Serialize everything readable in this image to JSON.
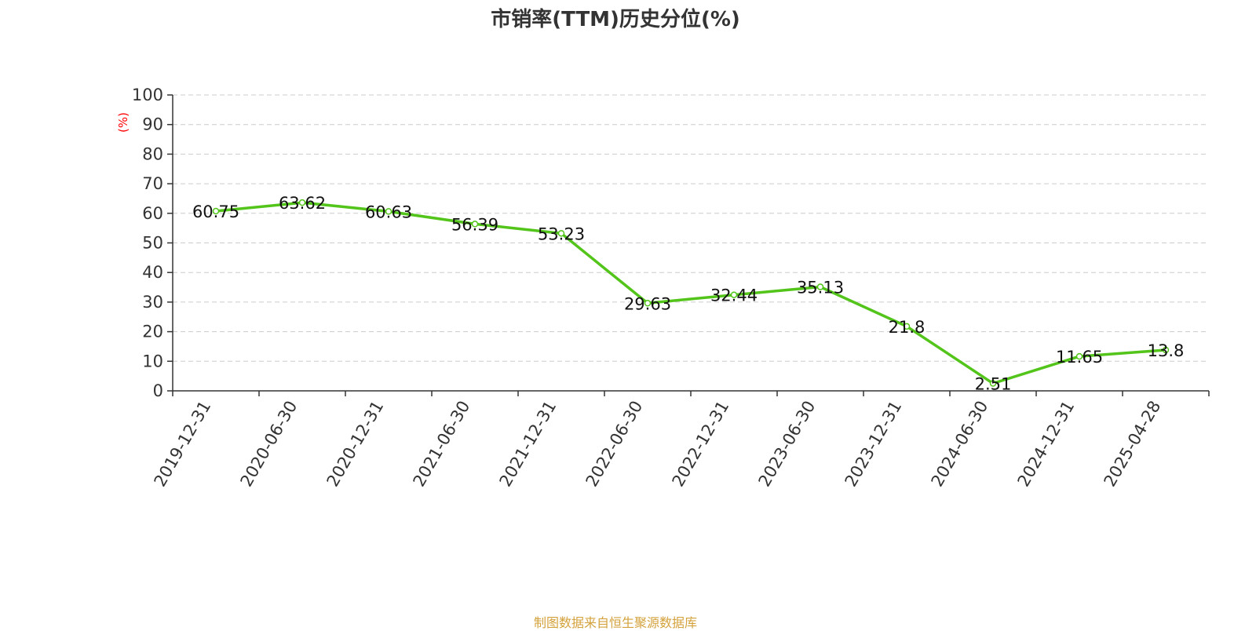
{
  "chart_data": {
    "type": "line",
    "title": "市销率(TTM)历史分位(%)",
    "ylabel": "(%)",
    "xlabel": "",
    "ylim": [
      0,
      100
    ],
    "yticks": [
      0,
      10,
      20,
      30,
      40,
      50,
      60,
      70,
      80,
      90,
      100
    ],
    "categories": [
      "2019-12-31",
      "2020-06-30",
      "2020-12-31",
      "2021-06-30",
      "2021-12-31",
      "2022-06-30",
      "2022-12-31",
      "2023-06-30",
      "2023-12-31",
      "2024-06-30",
      "2024-12-31",
      "2025-04-28"
    ],
    "series": [
      {
        "values": [
          60.75,
          63.62,
          60.63,
          56.39,
          53.23,
          29.63,
          32.44,
          35.13,
          21.8,
          2.51,
          11.65,
          13.8
        ],
        "labels": [
          "60.75",
          "63.62",
          "60.63",
          "56.39",
          "53.23",
          "29.63",
          "32.44",
          "35.13",
          "21.8",
          "2.51",
          "11.65",
          "13.8"
        ],
        "color": "#52c41a"
      }
    ],
    "grid": true,
    "grid_color": "#cccccc",
    "ylabel_color": "#ff0000",
    "source": "制图数据来自恒生聚源数据库",
    "source_color": "#d4a23c"
  }
}
